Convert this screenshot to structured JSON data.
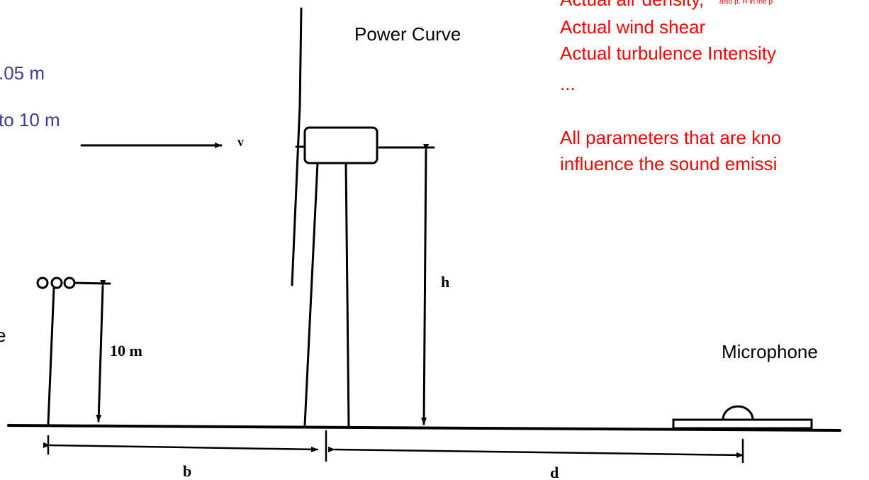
{
  "labels": {
    "anemometer_height": ".05 m",
    "reference_height": "to 10 m",
    "wind": "v",
    "power_curve": "Power Curve",
    "left_edge": "e",
    "mast_height": "10 m",
    "hub_height": "h",
    "microphone": "Microphone",
    "distance_b": "b",
    "distance_d": "d"
  },
  "parameters": {
    "items": [
      "Actual air density,",
      "Actual wind shear",
      "Actual turbulence Intensity",
      "..."
    ],
    "note": "also p, H in the p",
    "summary": [
      "All parameters that are kno",
      "influence the sound emissi"
    ]
  }
}
